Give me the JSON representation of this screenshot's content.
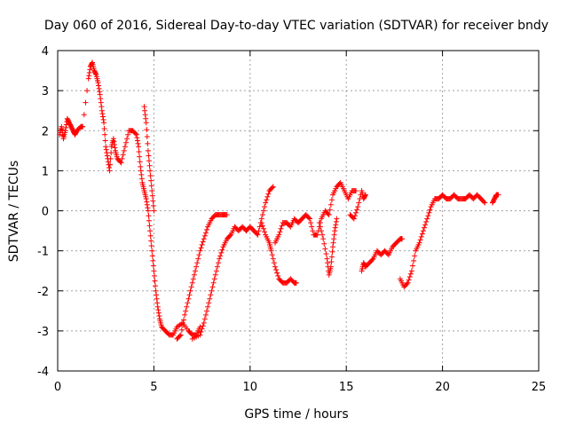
{
  "chart_data": {
    "type": "scatter",
    "title": "Day 060 of 2016, Sidereal Day-to-day VTEC variation (SDTVAR) for receiver bndy",
    "xlabel": "GPS time / hours",
    "ylabel": "SDTVAR / TECUs",
    "xlim": [
      0,
      25
    ],
    "ylim": [
      -4,
      4
    ],
    "grid": true,
    "marker": "+",
    "marker_color": "#ff0000",
    "x_ticks": [
      "0",
      "5",
      "10",
      "15",
      "20",
      "25"
    ],
    "y_ticks": [
      "4",
      "3",
      "2",
      "1",
      "0",
      "-1",
      "-2",
      "-3",
      "-4"
    ],
    "series": [
      {
        "name": "bndy",
        "segments": [
          [
            [
              0.1,
              1.9
            ],
            [
              0.2,
              2.1
            ],
            [
              0.3,
              1.8
            ],
            [
              0.4,
              2.0
            ],
            [
              0.5,
              2.3
            ],
            [
              0.6,
              2.2
            ],
            [
              0.7,
              2.1
            ],
            [
              0.8,
              2.0
            ],
            [
              0.9,
              1.9
            ],
            [
              1.0,
              2.0
            ],
            [
              1.2,
              2.1
            ],
            [
              1.3,
              2.1
            ],
            [
              1.6,
              3.3
            ],
            [
              1.7,
              3.6
            ],
            [
              1.8,
              3.7
            ],
            [
              1.9,
              3.5
            ],
            [
              2.0,
              3.4
            ],
            [
              2.1,
              3.2
            ],
            [
              2.2,
              2.9
            ],
            [
              2.3,
              2.5
            ],
            [
              2.4,
              2.2
            ],
            [
              2.5,
              1.6
            ],
            [
              2.6,
              1.3
            ],
            [
              2.7,
              1.0
            ],
            [
              2.8,
              1.6
            ],
            [
              2.9,
              1.8
            ],
            [
              3.0,
              1.5
            ],
            [
              3.1,
              1.3
            ],
            [
              3.3,
              1.2
            ],
            [
              3.5,
              1.6
            ],
            [
              3.7,
              2.0
            ],
            [
              3.9,
              2.0
            ],
            [
              4.1,
              1.9
            ],
            [
              4.2,
              1.6
            ],
            [
              4.3,
              1.1
            ],
            [
              4.4,
              0.7
            ],
            [
              4.5,
              0.5
            ],
            [
              4.6,
              0.3
            ],
            [
              4.7,
              0.0
            ],
            [
              4.8,
              -0.5
            ],
            [
              4.9,
              -1.0
            ],
            [
              5.0,
              -1.5
            ],
            [
              5.1,
              -2.0
            ],
            [
              5.2,
              -2.4
            ],
            [
              5.3,
              -2.7
            ],
            [
              5.4,
              -2.9
            ],
            [
              5.6,
              -3.0
            ],
            [
              5.8,
              -3.1
            ],
            [
              6.0,
              -3.1
            ],
            [
              6.2,
              -2.9
            ],
            [
              6.5,
              -2.8
            ],
            [
              6.8,
              -3.0
            ],
            [
              7.0,
              -3.1
            ],
            [
              7.2,
              -3.1
            ],
            [
              7.4,
              -2.9
            ]
          ],
          [
            [
              4.5,
              2.6
            ],
            [
              4.6,
              2.2
            ],
            [
              4.7,
              1.5
            ],
            [
              4.8,
              1.0
            ],
            [
              4.9,
              0.5
            ],
            [
              5.0,
              0.0
            ]
          ],
          [
            [
              6.2,
              -3.2
            ],
            [
              6.4,
              -3.1
            ],
            [
              6.6,
              -2.6
            ],
            [
              6.8,
              -2.2
            ],
            [
              7.0,
              -1.8
            ],
            [
              7.2,
              -1.4
            ],
            [
              7.4,
              -1.0
            ],
            [
              7.6,
              -0.7
            ],
            [
              7.8,
              -0.4
            ],
            [
              8.0,
              -0.2
            ],
            [
              8.2,
              -0.1
            ],
            [
              8.4,
              -0.1
            ],
            [
              8.6,
              -0.1
            ],
            [
              8.8,
              -0.1
            ]
          ],
          [
            [
              7.0,
              -3.2
            ],
            [
              7.4,
              -3.1
            ],
            [
              7.6,
              -2.8
            ],
            [
              7.8,
              -2.4
            ],
            [
              8.0,
              -2.0
            ],
            [
              8.2,
              -1.6
            ],
            [
              8.4,
              -1.2
            ],
            [
              8.6,
              -0.9
            ],
            [
              8.8,
              -0.7
            ],
            [
              9.0,
              -0.6
            ],
            [
              9.2,
              -0.4
            ],
            [
              9.4,
              -0.5
            ],
            [
              9.6,
              -0.4
            ],
            [
              9.8,
              -0.5
            ],
            [
              10.0,
              -0.4
            ],
            [
              10.2,
              -0.5
            ],
            [
              10.4,
              -0.6
            ],
            [
              10.6,
              -0.2
            ],
            [
              10.8,
              0.2
            ],
            [
              11.0,
              0.5
            ],
            [
              11.2,
              0.6
            ]
          ],
          [
            [
              10.6,
              -0.3
            ],
            [
              10.8,
              -0.6
            ],
            [
              11.0,
              -0.8
            ],
            [
              11.1,
              -1.0
            ],
            [
              11.3,
              -1.4
            ],
            [
              11.5,
              -1.7
            ],
            [
              11.7,
              -1.8
            ],
            [
              11.9,
              -1.8
            ],
            [
              12.1,
              -1.7
            ],
            [
              12.3,
              -1.8
            ],
            [
              12.4,
              -1.8
            ]
          ],
          [
            [
              11.3,
              -0.8
            ],
            [
              11.5,
              -0.6
            ],
            [
              11.7,
              -0.3
            ],
            [
              11.9,
              -0.3
            ],
            [
              12.1,
              -0.4
            ],
            [
              12.3,
              -0.2
            ],
            [
              12.5,
              -0.3
            ],
            [
              12.7,
              -0.2
            ],
            [
              12.9,
              -0.1
            ],
            [
              13.1,
              -0.2
            ],
            [
              13.3,
              -0.6
            ],
            [
              13.5,
              -0.6
            ],
            [
              13.7,
              -0.2
            ],
            [
              13.9,
              0.0
            ],
            [
              14.1,
              -0.1
            ],
            [
              14.3,
              0.4
            ],
            [
              14.5,
              0.6
            ],
            [
              14.7,
              0.7
            ],
            [
              14.9,
              0.5
            ],
            [
              15.1,
              0.3
            ],
            [
              15.3,
              0.5
            ],
            [
              15.5,
              0.5
            ]
          ],
          [
            [
              13.6,
              -0.3
            ],
            [
              13.8,
              -0.7
            ],
            [
              14.0,
              -1.2
            ],
            [
              14.1,
              -1.6
            ],
            [
              14.2,
              -1.4
            ],
            [
              14.3,
              -0.9
            ],
            [
              14.4,
              -0.5
            ],
            [
              14.5,
              -0.2
            ]
          ],
          [
            [
              15.2,
              -0.1
            ],
            [
              15.4,
              -0.2
            ],
            [
              15.6,
              0.1
            ],
            [
              15.8,
              0.5
            ],
            [
              15.9,
              0.3
            ],
            [
              16.0,
              0.4
            ]
          ],
          [
            [
              15.8,
              -1.5
            ],
            [
              15.9,
              -1.3
            ],
            [
              16.0,
              -1.4
            ],
            [
              16.2,
              -1.3
            ],
            [
              16.4,
              -1.2
            ],
            [
              16.6,
              -1.0
            ],
            [
              16.8,
              -1.1
            ],
            [
              17.0,
              -1.0
            ],
            [
              17.2,
              -1.1
            ],
            [
              17.4,
              -0.9
            ],
            [
              17.6,
              -0.8
            ],
            [
              17.8,
              -0.7
            ],
            [
              17.9,
              -0.7
            ]
          ],
          [
            [
              17.8,
              -1.7
            ],
            [
              18.0,
              -1.9
            ],
            [
              18.2,
              -1.8
            ],
            [
              18.4,
              -1.5
            ],
            [
              18.6,
              -1.0
            ],
            [
              18.8,
              -0.8
            ],
            [
              19.0,
              -0.5
            ],
            [
              19.2,
              -0.2
            ],
            [
              19.4,
              0.1
            ],
            [
              19.6,
              0.3
            ],
            [
              19.8,
              0.3
            ],
            [
              20.0,
              0.4
            ],
            [
              20.2,
              0.3
            ],
            [
              20.4,
              0.3
            ],
            [
              20.6,
              0.4
            ],
            [
              20.8,
              0.3
            ],
            [
              21.0,
              0.3
            ],
            [
              21.2,
              0.3
            ],
            [
              21.4,
              0.4
            ],
            [
              21.6,
              0.3
            ],
            [
              21.8,
              0.4
            ],
            [
              22.0,
              0.3
            ],
            [
              22.2,
              0.2
            ]
          ],
          [
            [
              22.6,
              0.2
            ],
            [
              22.7,
              0.3
            ],
            [
              22.8,
              0.4
            ],
            [
              22.9,
              0.4
            ]
          ]
        ]
      }
    ]
  }
}
